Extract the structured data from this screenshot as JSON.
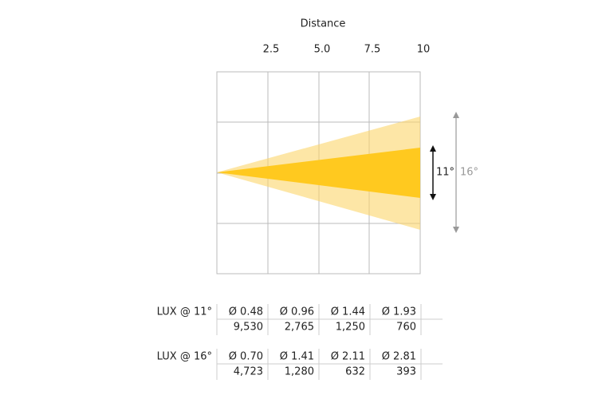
{
  "diagram": {
    "title": "Distance",
    "distances": [
      "2.5",
      "5.0",
      "7.5",
      "10"
    ],
    "beams": [
      {
        "angle": "11°"
      },
      {
        "angle": "16°"
      }
    ]
  },
  "table": {
    "groups": [
      {
        "label": "LUX @ 11°",
        "diameters": [
          "Ø 0.48",
          "Ø 0.96",
          "Ø 1.44",
          "Ø 1.93"
        ],
        "lux": [
          "9,530",
          "2,765",
          "1,250",
          "760"
        ]
      },
      {
        "label": "LUX @ 16°",
        "diameters": [
          "Ø 0.70",
          "Ø 1.41",
          "Ø 2.11",
          "Ø 2.81"
        ],
        "lux": [
          "4,723",
          "1,280",
          "632",
          "393"
        ]
      }
    ]
  }
}
